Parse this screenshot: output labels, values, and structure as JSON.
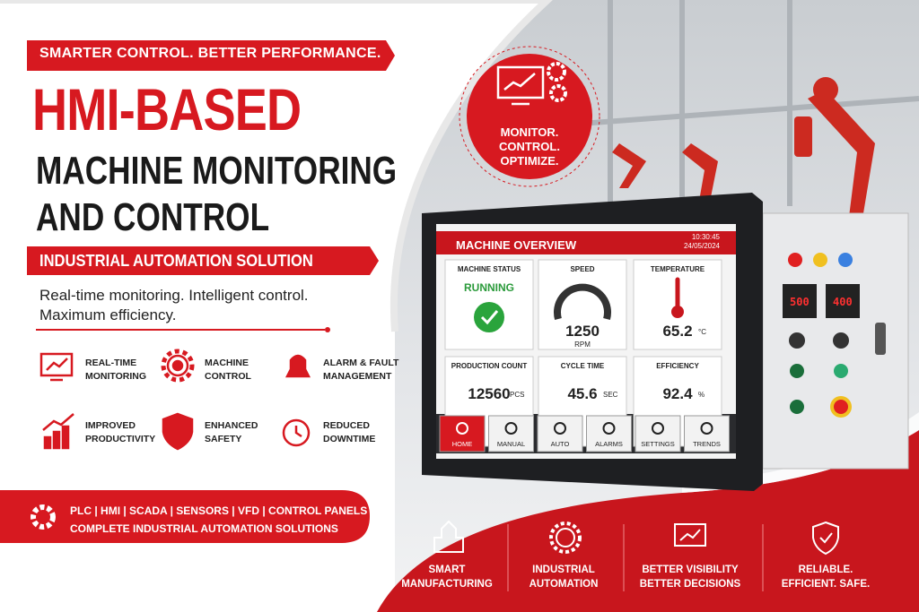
{
  "header": {
    "tagline": "SMARTER CONTROL. BETTER PERFORMANCE.",
    "title": [
      "HMI-BASED",
      "MACHINE MONITORING",
      "AND CONTROL"
    ],
    "subtitle": "INDUSTRIAL AUTOMATION SOLUTION",
    "description": [
      "Real-time monitoring. Intelligent control.",
      "Maximum efficiency."
    ]
  },
  "features": [
    {
      "label": [
        "REAL-TIME",
        "MONITORING"
      ]
    },
    {
      "label": [
        "MACHINE",
        "CONTROL"
      ]
    },
    {
      "label": [
        "ALARM & FAULT",
        "MANAGEMENT"
      ]
    },
    {
      "label": [
        "IMPROVED",
        "PRODUCTIVITY"
      ]
    },
    {
      "label": [
        "ENHANCED",
        "SAFETY"
      ]
    },
    {
      "label": [
        "REDUCED",
        "DOWNTIME"
      ]
    }
  ],
  "badge": [
    "MONITOR.",
    "CONTROL.",
    "OPTIMIZE."
  ],
  "hmi": {
    "title": "MACHINE OVERVIEW",
    "time": "10:30:45",
    "date": "24/05/2024",
    "tiles": [
      {
        "label": "MACHINE STATUS",
        "value": "RUNNING"
      },
      {
        "label": "SPEED",
        "value": "1250",
        "unit": "RPM"
      },
      {
        "label": "TEMPERATURE",
        "value": "65.2",
        "unit": "°C"
      },
      {
        "label": "PRODUCTION COUNT",
        "value": "12560",
        "unit": "PCS"
      },
      {
        "label": "CYCLE TIME",
        "value": "45.6",
        "unit": "SEC"
      },
      {
        "label": "EFFICIENCY",
        "value": "92.4",
        "unit": "%"
      }
    ],
    "nav": [
      "HOME",
      "MANUAL",
      "AUTO",
      "ALARMS",
      "SETTINGS",
      "TRENDS"
    ]
  },
  "panel": {
    "displays": [
      "500",
      "400"
    ]
  },
  "footer": {
    "technologies": "PLC | HMI | SCADA | SENSORS | VFD | CONTROL PANELS",
    "summary": "COMPLETE INDUSTRIAL AUTOMATION SOLUTIONS",
    "benefits": [
      [
        "SMART",
        "MANUFACTURING"
      ],
      [
        "INDUSTRIAL",
        "AUTOMATION"
      ],
      [
        "BETTER VISIBILITY",
        "BETTER DECISIONS"
      ],
      [
        "RELIABLE.",
        "EFFICIENT. SAFE."
      ]
    ]
  }
}
